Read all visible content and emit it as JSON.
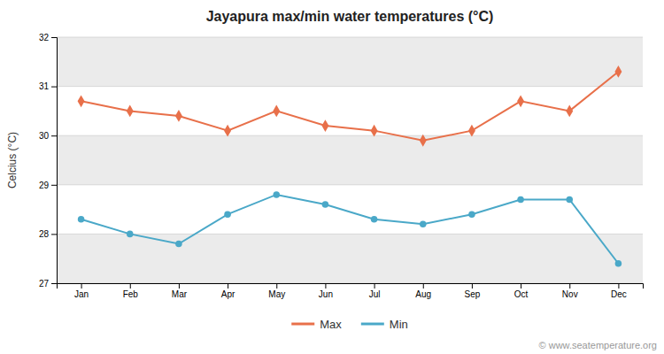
{
  "chart_data": {
    "type": "line",
    "title": "Jayapura max/min water temperatures (°C)",
    "ylabel": "Celcius (°C)",
    "categories": [
      "Jan",
      "Feb",
      "Mar",
      "Apr",
      "May",
      "Jun",
      "Jul",
      "Aug",
      "Sep",
      "Oct",
      "Nov",
      "Dec"
    ],
    "series": [
      {
        "name": "Max",
        "color": "#e8704a",
        "marker": "diamond",
        "values": [
          30.7,
          30.5,
          30.4,
          30.1,
          30.5,
          30.2,
          30.1,
          29.9,
          30.1,
          30.7,
          30.5,
          31.3
        ]
      },
      {
        "name": "Min",
        "color": "#4aa8c8",
        "marker": "circle",
        "values": [
          28.3,
          28.0,
          27.8,
          28.4,
          28.8,
          28.6,
          28.3,
          28.2,
          28.4,
          28.7,
          28.7,
          27.4
        ]
      }
    ],
    "ylim": [
      27.0,
      32.0
    ],
    "yticks": [
      27,
      28,
      29,
      30,
      31,
      32
    ],
    "grid": true,
    "legend": "bottom",
    "annotations": [
      "© www.seatemperature.org"
    ]
  }
}
